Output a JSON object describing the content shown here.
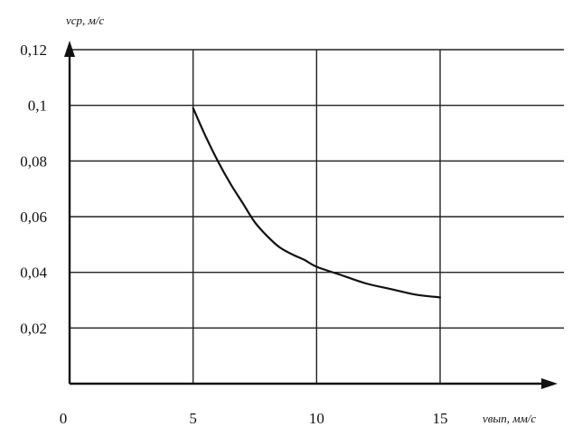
{
  "chart_data": {
    "type": "line",
    "xlabel": "vвып, мм/с",
    "ylabel": "vср, м/с",
    "xlim": [
      0,
      15
    ],
    "ylim": [
      0,
      0.12
    ],
    "x_ticks": [
      "0",
      "5",
      "10",
      "15"
    ],
    "y_ticks": [
      "0,02",
      "0,04",
      "0,06",
      "0,08",
      "0,1",
      "0,12"
    ],
    "grid": true,
    "series": [
      {
        "x": [
          5,
          5.5,
          6,
          6.5,
          7,
          7.5,
          8,
          8.5,
          9,
          9.5,
          10,
          11,
          12,
          13,
          14,
          15
        ],
        "y": [
          0.099,
          0.089,
          0.08,
          0.072,
          0.065,
          0.058,
          0.053,
          0.049,
          0.0465,
          0.0445,
          0.042,
          0.039,
          0.036,
          0.034,
          0.032,
          0.031
        ]
      }
    ]
  }
}
